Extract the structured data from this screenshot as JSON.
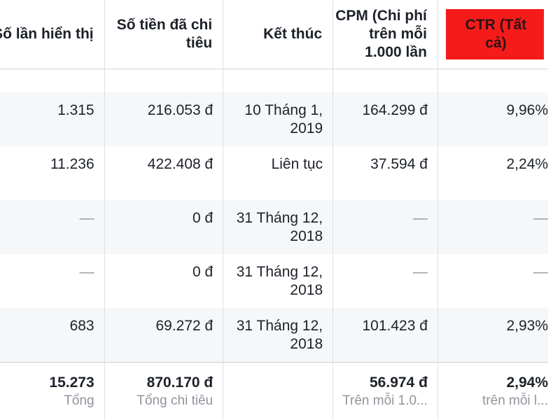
{
  "headers": {
    "impressions": "Số lần hiển thị",
    "spent": "Số tiền đã chi tiêu",
    "end": "Kết thúc",
    "cpm": "CPM (Chi phí trên mỗi 1.000 lần",
    "ctr": "CTR (Tất cả)"
  },
  "rows": [
    {
      "impressions": "1.315",
      "spent": "216.053 đ",
      "end": "10 Tháng 1, 2019",
      "cpm": "164.299 đ",
      "ctr": "9,96%"
    },
    {
      "impressions": "11.236",
      "spent": "422.408 đ",
      "end": "Liên tục",
      "cpm": "37.594 đ",
      "ctr": "2,24%"
    },
    {
      "impressions": "—",
      "spent": "0 đ",
      "end": "31 Tháng 12, 2018",
      "cpm": "—",
      "ctr": "—"
    },
    {
      "impressions": "—",
      "spent": "0 đ",
      "end": "31 Tháng 12, 2018",
      "cpm": "—",
      "ctr": "—"
    },
    {
      "impressions": "683",
      "spent": "69.272 đ",
      "end": "31 Tháng 12, 2018",
      "cpm": "101.423 đ",
      "ctr": "2,93%"
    }
  ],
  "totals": {
    "impressions": {
      "value": "15.273",
      "label": "Tổng"
    },
    "spent": {
      "value": "870.170 đ",
      "label": "Tổng chi tiêu"
    },
    "end": {
      "value": "",
      "label": ""
    },
    "cpm": {
      "value": "56.974 đ",
      "label": "Trên mỗi 1.0..."
    },
    "ctr": {
      "value": "2,94%",
      "label": "trên mỗi l..."
    }
  },
  "colors": {
    "ctr_highlight": "#f61b1b",
    "row_alt": "#f6f7f9",
    "border": "#dddfe2",
    "muted_text": "#90949c"
  }
}
